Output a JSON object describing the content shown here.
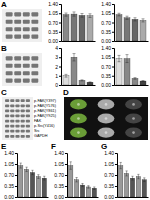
{
  "chart_data": [
    {
      "type": "blot",
      "title": "A",
      "color": "#333333"
    },
    {
      "type": "bar",
      "categories": [
        null,
        null,
        null,
        null
      ],
      "values": [
        1.0,
        1.02,
        0.97,
        0.96
      ],
      "errors": [
        0.06,
        0.08,
        0.07,
        0.07
      ],
      "colors": [
        "#888888",
        "#777777",
        "#666666",
        "#aaaaaa"
      ],
      "ylim": [
        0,
        1.4
      ],
      "yticks": [
        {
          "value": 0,
          "label": "0.00"
        },
        {
          "value": 0.35,
          "label": "0.35"
        },
        {
          "value": 0.7,
          "label": "0.70"
        },
        {
          "value": 1.05,
          "label": "1.05"
        },
        {
          "value": 1.4,
          "label": "1.40"
        }
      ],
      "tick_labels": "y"
    },
    {
      "type": "bar",
      "categories": [
        null,
        null,
        null,
        null
      ],
      "values": [
        1.0,
        0.88,
        0.82,
        0.78
      ],
      "errors": [
        0.05,
        0.06,
        0.06,
        0.06
      ],
      "colors": [
        "#888888",
        "#777777",
        "#666666",
        "#aaaaaa"
      ],
      "ylim": [
        0,
        1.4
      ],
      "yticks": [
        {
          "value": 0,
          "label": "0.00"
        },
        {
          "value": 0.35,
          "label": "0.35"
        },
        {
          "value": 0.7,
          "label": "0.70"
        },
        {
          "value": 1.05,
          "label": "1.05"
        },
        {
          "value": 1.4,
          "label": "1.40"
        }
      ],
      "tick_labels": "y"
    },
    {
      "type": "blot",
      "title": "B",
      "color": "#333333"
    },
    {
      "type": "bar",
      "categories": [
        null,
        null,
        null,
        null
      ],
      "values": [
        1.0,
        3.0,
        0.5,
        0.3
      ],
      "errors": [
        0.15,
        0.4,
        0.06,
        0.04
      ],
      "colors": [
        "#dddddd",
        "#888888",
        "#888888",
        "#444444"
      ],
      "ylim": [
        0,
        4.0
      ],
      "yticks": [
        0,
        1,
        2,
        3,
        4
      ],
      "tick_labels": "y"
    },
    {
      "type": "bar",
      "categories": [
        null,
        null,
        null,
        null
      ],
      "values": [
        1.0,
        1.0,
        0.25,
        0.15
      ],
      "errors": [
        0.12,
        0.15,
        0.03,
        0.02
      ],
      "colors": [
        "#dddddd",
        "#888888",
        "#888888",
        "#444444"
      ],
      "ylim": [
        0,
        1.4
      ],
      "yticks": [
        {
          "value": 0,
          "label": "0.00"
        },
        {
          "value": 0.35,
          "label": "0.35"
        },
        {
          "value": 0.7,
          "label": "0.70"
        },
        {
          "value": 1.05,
          "label": "1.05"
        },
        {
          "value": 1.4,
          "label": "1.40"
        }
      ],
      "tick_labels": "y"
    },
    {
      "type": "blot",
      "title": "C",
      "color": "#333333",
      "categories": [
        "p-FAK(Y397)",
        "p-FAK(Y576)",
        "p-FAK(Y861)",
        "p-FAK(Y925)",
        "FAK",
        "p-Src(Y416)",
        "Src",
        "GAPDH"
      ]
    },
    {
      "type": "image",
      "title": "D",
      "color": "#111111",
      "colors": [
        "#88cc44",
        "#dddddd",
        "#555555"
      ]
    },
    {
      "type": "bar",
      "title": "E",
      "categories": [
        null,
        null,
        null,
        null,
        null
      ],
      "values": [
        1.0,
        0.88,
        0.78,
        0.65,
        0.6
      ],
      "errors": [
        0.08,
        0.07,
        0.07,
        0.06,
        0.06
      ],
      "colors": [
        "#999999",
        "#999999",
        "#555555",
        "#999999",
        "#555555"
      ],
      "ylim": [
        0,
        1.4
      ],
      "yticks": [
        {
          "value": 0,
          "label": "0.00"
        },
        {
          "value": 0.35,
          "label": "0.35"
        },
        {
          "value": 0.7,
          "label": "0.70"
        },
        {
          "value": 1.05,
          "label": "1.05"
        },
        {
          "value": 1.4,
          "label": "1.40"
        }
      ],
      "tick_labels": "y"
    },
    {
      "type": "bar",
      "title": "F",
      "categories": [
        null,
        null,
        null,
        null,
        null
      ],
      "values": [
        1.0,
        0.55,
        0.38,
        0.32,
        0.28
      ],
      "errors": [
        0.12,
        0.07,
        0.05,
        0.04,
        0.04
      ],
      "colors": [
        "#999999",
        "#999999",
        "#555555",
        "#999999",
        "#555555"
      ],
      "ylim": [
        0,
        1.4
      ],
      "yticks": [
        {
          "value": 0,
          "label": "0.00"
        },
        {
          "value": 0.35,
          "label": "0.35"
        },
        {
          "value": 0.7,
          "label": "0.70"
        },
        {
          "value": 1.05,
          "label": "1.05"
        },
        {
          "value": 1.4,
          "label": "1.40"
        }
      ],
      "tick_labels": "y"
    },
    {
      "type": "bar",
      "title": "G",
      "categories": [
        null,
        null,
        null,
        null,
        null
      ],
      "values": [
        1.0,
        0.75,
        0.6,
        0.65,
        0.55
      ],
      "errors": [
        0.1,
        0.08,
        0.06,
        0.07,
        0.06
      ],
      "colors": [
        "#999999",
        "#999999",
        "#555555",
        "#999999",
        "#555555"
      ],
      "ylim": [
        0,
        1.4
      ],
      "yticks": [
        {
          "value": 0,
          "label": "0.00"
        },
        {
          "value": 0.35,
          "label": "0.35"
        },
        {
          "value": 0.7,
          "label": "0.70"
        },
        {
          "value": 1.05,
          "label": "1.05"
        },
        {
          "value": 1.4,
          "label": "1.40"
        }
      ],
      "tick_labels": "y"
    }
  ]
}
